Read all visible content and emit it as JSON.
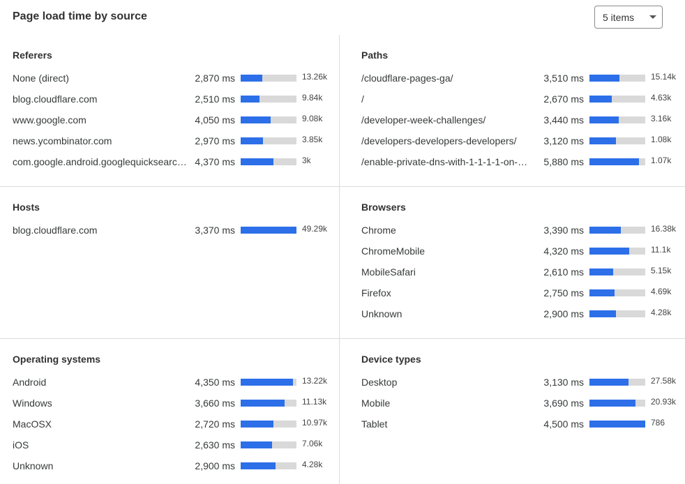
{
  "title": "Page load time by source",
  "items_select": {
    "value": "5 items"
  },
  "colors": {
    "bar_fill": "#2c6fe8",
    "bar_track": "#d9d9d9"
  },
  "panels": [
    {
      "title": "Referers",
      "rows": [
        {
          "label": "None (direct)",
          "ms": "2,870 ms",
          "count": "13.26k",
          "fill": 0.39
        },
        {
          "label": "blog.cloudflare.com",
          "ms": "2,510 ms",
          "count": "9.84k",
          "fill": 0.34
        },
        {
          "label": "www.google.com",
          "ms": "4,050 ms",
          "count": "9.08k",
          "fill": 0.54
        },
        {
          "label": "news.ycombinator.com",
          "ms": "2,970 ms",
          "count": "3.85k",
          "fill": 0.4
        },
        {
          "label": "com.google.android.googlequicksearc…",
          "ms": "4,370 ms",
          "count": "3k",
          "fill": 0.59
        }
      ]
    },
    {
      "title": "Paths",
      "rows": [
        {
          "label": "/cloudflare-pages-ga/",
          "ms": "3,510 ms",
          "count": "15.14k",
          "fill": 0.54
        },
        {
          "label": "/",
          "ms": "2,670 ms",
          "count": "4.63k",
          "fill": 0.4
        },
        {
          "label": "/developer-week-challenges/",
          "ms": "3,440 ms",
          "count": "3.16k",
          "fill": 0.53
        },
        {
          "label": "/developers-developers-developers/",
          "ms": "3,120 ms",
          "count": "1.08k",
          "fill": 0.48
        },
        {
          "label": "/enable-private-dns-with-1-1-1-1-on-…",
          "ms": "5,880 ms",
          "count": "1.07k",
          "fill": 0.89
        }
      ]
    },
    {
      "title": "Hosts",
      "rows": [
        {
          "label": "blog.cloudflare.com",
          "ms": "3,370 ms",
          "count": "49.29k",
          "fill": 1.0
        }
      ]
    },
    {
      "title": "Browsers",
      "rows": [
        {
          "label": "Chrome",
          "ms": "3,390 ms",
          "count": "16.38k",
          "fill": 0.56
        },
        {
          "label": "ChromeMobile",
          "ms": "4,320 ms",
          "count": "11.1k",
          "fill": 0.71
        },
        {
          "label": "MobileSafari",
          "ms": "2,610 ms",
          "count": "5.15k",
          "fill": 0.43
        },
        {
          "label": "Firefox",
          "ms": "2,750 ms",
          "count": "4.69k",
          "fill": 0.45
        },
        {
          "label": "Unknown",
          "ms": "2,900 ms",
          "count": "4.28k",
          "fill": 0.48
        }
      ]
    },
    {
      "title": "Operating systems",
      "rows": [
        {
          "label": "Android",
          "ms": "4,350 ms",
          "count": "13.22k",
          "fill": 0.94
        },
        {
          "label": "Windows",
          "ms": "3,660 ms",
          "count": "11.13k",
          "fill": 0.79
        },
        {
          "label": "MacOSX",
          "ms": "2,720 ms",
          "count": "10.97k",
          "fill": 0.59
        },
        {
          "label": "iOS",
          "ms": "2,630 ms",
          "count": "7.06k",
          "fill": 0.56
        },
        {
          "label": "Unknown",
          "ms": "2,900 ms",
          "count": "4.28k",
          "fill": 0.63
        }
      ]
    },
    {
      "title": "Device types",
      "rows": [
        {
          "label": "Desktop",
          "ms": "3,130 ms",
          "count": "27.58k",
          "fill": 0.7
        },
        {
          "label": "Mobile",
          "ms": "3,690 ms",
          "count": "20.93k",
          "fill": 0.83
        },
        {
          "label": "Tablet",
          "ms": "4,500 ms",
          "count": "786",
          "fill": 1.0
        }
      ]
    }
  ]
}
